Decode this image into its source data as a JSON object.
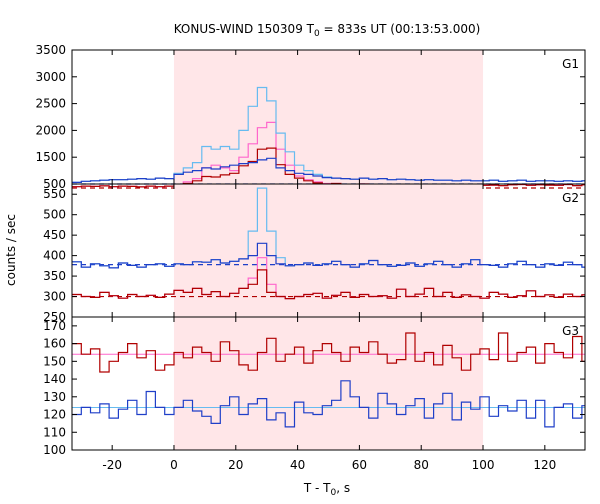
{
  "chart_data": {
    "type": "line",
    "title": "KONUS-WIND 150309 T",
    "title_sub": "0",
    "title_rest": " = 833s UT (00:13:53.000)",
    "xlabel": "T - T",
    "xlabel_sub": "0",
    "xlabel_rest": ", s",
    "ylabel": "counts / sec",
    "xlim": [
      -33,
      133
    ],
    "xticks": [
      -20,
      0,
      20,
      40,
      60,
      80,
      100,
      120
    ],
    "highlight_interval": [
      0,
      100
    ],
    "colors": {
      "dark_red": "#b00000",
      "pink": "#ff66cc",
      "blue": "#1f3fc8",
      "light_blue": "#66bbf0",
      "highlight": "#ffe6e8"
    },
    "panels": [
      {
        "label": "G1",
        "ylim": [
          1000,
          3500
        ],
        "axis_min_label": "500",
        "yticks": [
          1000,
          1500,
          2000,
          2500,
          3000,
          3500
        ],
        "background": {
          "red": 925,
          "blue": 1000
        },
        "x": [
          -33,
          -30,
          -27,
          -24,
          -21,
          -18,
          -15,
          -12,
          -9,
          -6,
          -3,
          0,
          3,
          6,
          9,
          12,
          15,
          18,
          21,
          24,
          27,
          30,
          33,
          36,
          39,
          42,
          45,
          48,
          51,
          54,
          57,
          60,
          63,
          66,
          69,
          72,
          75,
          78,
          81,
          84,
          87,
          90,
          93,
          96,
          99,
          102,
          105,
          108,
          111,
          114,
          117,
          120,
          123,
          126,
          129,
          132
        ],
        "red": [
          950,
          960,
          955,
          965,
          950,
          960,
          955,
          945,
          960,
          950,
          960,
          980,
          1010,
          1060,
          1140,
          1130,
          1170,
          1200,
          1340,
          1420,
          1650,
          1670,
          1360,
          1180,
          1110,
          1060,
          1020,
          1000,
          1010,
          990,
          980,
          1000,
          990,
          985,
          975,
          990,
          980,
          970,
          985,
          975,
          980,
          970,
          990,
          985,
          975,
          980,
          970,
          985,
          990,
          975,
          985,
          980,
          975,
          990,
          970,
          985
        ],
        "pink": [
          950,
          960,
          955,
          965,
          950,
          960,
          955,
          945,
          960,
          950,
          960,
          980,
          1040,
          1100,
          1300,
          1350,
          1300,
          1250,
          1500,
          1750,
          2050,
          2150,
          1650,
          1350,
          1150,
          1080,
          1040,
          1010,
          1010,
          990,
          980,
          1000,
          990,
          985,
          975,
          990,
          980,
          970,
          985,
          975,
          980,
          970,
          990,
          985,
          975,
          980,
          970,
          985,
          990,
          975,
          985,
          980,
          975,
          990,
          970,
          985
        ],
        "blue": [
          1030,
          1050,
          1060,
          1070,
          1080,
          1080,
          1090,
          1100,
          1090,
          1110,
          1100,
          1180,
          1220,
          1250,
          1300,
          1280,
          1320,
          1350,
          1380,
          1400,
          1450,
          1480,
          1300,
          1250,
          1200,
          1180,
          1150,
          1120,
          1110,
          1100,
          1090,
          1110,
          1090,
          1100,
          1080,
          1090,
          1080,
          1070,
          1080,
          1070,
          1070,
          1060,
          1070,
          1060,
          1060,
          1070,
          1050,
          1060,
          1070,
          1050,
          1060,
          1060,
          1050,
          1060,
          1050,
          1060
        ],
        "lightblue": [
          1030,
          1050,
          1060,
          1070,
          1080,
          1080,
          1090,
          1100,
          1090,
          1110,
          1100,
          1200,
          1300,
          1400,
          1700,
          1650,
          1700,
          1650,
          2000,
          2450,
          2800,
          2550,
          1950,
          1600,
          1350,
          1250,
          1180,
          1130,
          1110,
          1100,
          1090,
          1110,
          1090,
          1100,
          1080,
          1090,
          1080,
          1070,
          1080,
          1070,
          1070,
          1060,
          1070,
          1060,
          1060,
          1070,
          1050,
          1060,
          1070,
          1050,
          1060,
          1060,
          1050,
          1060,
          1050,
          1060
        ]
      },
      {
        "label": "G2",
        "ylim": [
          250,
          575
        ],
        "axis_min_label": "250",
        "yticks": [
          250,
          300,
          350,
          400,
          450,
          500,
          550
        ],
        "background": {
          "red": 300,
          "blue": 378
        },
        "x": [
          -33,
          -30,
          -27,
          -24,
          -21,
          -18,
          -15,
          -12,
          -9,
          -6,
          -3,
          0,
          3,
          6,
          9,
          12,
          15,
          18,
          21,
          24,
          27,
          30,
          33,
          36,
          39,
          42,
          45,
          48,
          51,
          54,
          57,
          60,
          63,
          66,
          69,
          72,
          75,
          78,
          81,
          84,
          87,
          90,
          93,
          96,
          99,
          102,
          105,
          108,
          111,
          114,
          117,
          120,
          123,
          126,
          129,
          132
        ],
        "red": [
          305,
          300,
          298,
          310,
          302,
          296,
          305,
          300,
          303,
          298,
          306,
          315,
          310,
          320,
          305,
          312,
          300,
          308,
          320,
          330,
          365,
          310,
          300,
          295,
          300,
          305,
          308,
          296,
          303,
          310,
          298,
          305,
          300,
          302,
          296,
          318,
          300,
          306,
          320,
          300,
          310,
          298,
          304,
          300,
          296,
          310,
          306,
          298,
          302,
          314,
          300,
          304,
          298,
          306,
          300,
          304
        ],
        "pink": [
          305,
          300,
          298,
          310,
          302,
          296,
          305,
          300,
          303,
          298,
          306,
          315,
          310,
          320,
          305,
          312,
          300,
          308,
          320,
          345,
          395,
          330,
          300,
          295,
          300,
          305,
          308,
          296,
          303,
          310,
          298,
          305,
          300,
          302,
          296,
          318,
          300,
          306,
          320,
          300,
          310,
          298,
          304,
          300,
          296,
          310,
          306,
          298,
          302,
          314,
          300,
          304,
          298,
          306,
          300,
          304
        ],
        "blue": [
          385,
          372,
          380,
          375,
          370,
          382,
          376,
          372,
          378,
          380,
          374,
          380,
          378,
          385,
          384,
          390,
          382,
          386,
          392,
          400,
          430,
          400,
          380,
          375,
          378,
          382,
          376,
          380,
          386,
          378,
          372,
          380,
          388,
          378,
          374,
          376,
          382,
          374,
          380,
          386,
          378,
          372,
          380,
          390,
          378,
          376,
          372,
          380,
          386,
          378,
          372,
          380,
          376,
          384,
          378,
          372
        ],
        "lightblue": [
          385,
          372,
          380,
          375,
          370,
          382,
          376,
          372,
          378,
          380,
          374,
          380,
          378,
          385,
          384,
          390,
          382,
          386,
          392,
          460,
          565,
          460,
          395,
          375,
          378,
          382,
          376,
          380,
          386,
          378,
          372,
          380,
          388,
          378,
          374,
          376,
          382,
          374,
          380,
          386,
          378,
          372,
          380,
          390,
          378,
          376,
          372,
          380,
          386,
          378,
          372,
          380,
          376,
          384,
          378,
          372
        ]
      },
      {
        "label": "G3",
        "ylim": [
          100,
          175
        ],
        "axis_min_label": "100",
        "yticks": [
          100,
          110,
          120,
          130,
          140,
          150,
          160,
          170
        ],
        "background": {
          "red": 154,
          "blue": 124
        },
        "x": [
          -33,
          -30,
          -27,
          -24,
          -21,
          -18,
          -15,
          -12,
          -9,
          -6,
          -3,
          0,
          3,
          6,
          9,
          12,
          15,
          18,
          21,
          24,
          27,
          30,
          33,
          36,
          39,
          42,
          45,
          48,
          51,
          54,
          57,
          60,
          63,
          66,
          69,
          72,
          75,
          78,
          81,
          84,
          87,
          90,
          93,
          96,
          99,
          102,
          105,
          108,
          111,
          114,
          117,
          120,
          123,
          126,
          129,
          132
        ],
        "red": [
          160,
          154,
          157,
          144,
          150,
          155,
          160,
          152,
          156,
          145,
          148,
          155,
          152,
          158,
          155,
          150,
          161,
          156,
          148,
          145,
          155,
          163,
          150,
          154,
          158,
          149,
          156,
          160,
          155,
          150,
          158,
          155,
          161,
          154,
          149,
          151,
          166,
          150,
          155,
          148,
          159,
          152,
          145,
          154,
          157,
          151,
          166,
          150,
          155,
          158,
          149,
          160,
          155,
          152,
          164,
          150
        ],
        "blue": [
          120,
          124,
          121,
          126,
          118,
          123,
          128,
          120,
          133,
          124,
          120,
          124,
          128,
          122,
          119,
          115,
          125,
          130,
          120,
          126,
          129,
          117,
          121,
          113,
          127,
          121,
          120,
          125,
          128,
          139,
          130,
          124,
          118,
          132,
          126,
          120,
          125,
          129,
          118,
          126,
          132,
          117,
          127,
          123,
          130,
          119,
          125,
          122,
          128,
          118,
          128,
          113,
          124,
          126,
          118,
          125
        ]
      }
    ]
  }
}
